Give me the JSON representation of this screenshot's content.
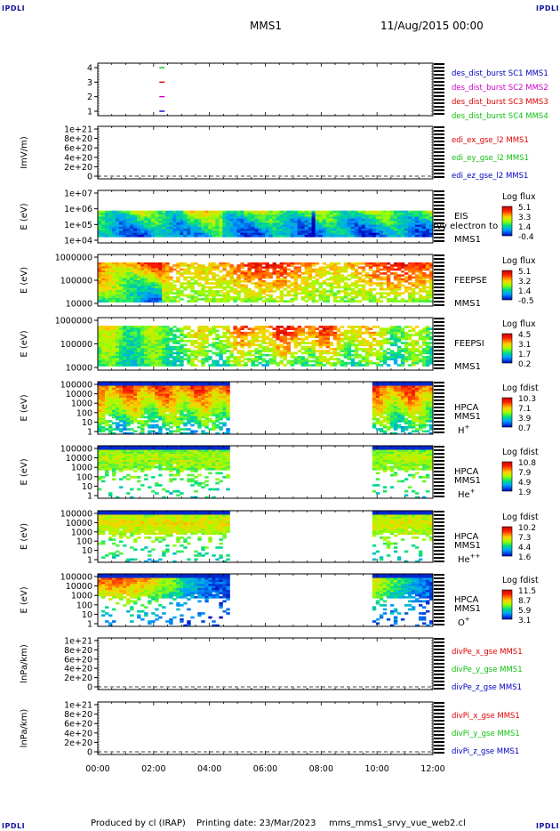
{
  "header": {
    "corner_tl": "IPDLI",
    "corner_tr": "IPDLI",
    "corner_bl": "IPDLI",
    "corner_br": "IPDLI",
    "spacecraft": "MMS1",
    "datetime": "11/Aug/2015 00:00"
  },
  "footer": {
    "produced_by": "Produced by cl (IRAP)",
    "printing_date": "Printing date: 23/Mar/2023",
    "script_name": "mms_mms1_srvy_vue_web2.cl"
  },
  "colors": {
    "red": "#e00000",
    "green": "#10c010",
    "blue": "#0000c0",
    "magenta": "#d000d0"
  },
  "chart_data": {
    "type": "heatmap",
    "x_axis": {
      "ticks": [
        "00:00",
        "02:00",
        "04:00",
        "06:00",
        "08:00",
        "10:00",
        "12:00"
      ],
      "range_hours": [
        0,
        12
      ]
    },
    "panels": [
      {
        "id": "burst",
        "kind": "burst",
        "ylabel": "",
        "yticks": [
          "4",
          "3",
          "2",
          "1"
        ],
        "legend": [
          {
            "text": "des_dist_burst SC1 MMS1",
            "color": "#0000c0"
          },
          {
            "text": "des_dist_burst SC2 MMS2",
            "color": "#d000d0"
          },
          {
            "text": "des_dist_burst SC3 MMS3",
            "color": "#e00000"
          },
          {
            "text": "des_dist_burst SC4 MMS4",
            "color": "#10c010"
          }
        ],
        "burst_marks": [
          {
            "sc": 4,
            "hour": 2.3,
            "color": "#10c010"
          },
          {
            "sc": 3,
            "hour": 2.3,
            "color": "#e00000"
          },
          {
            "sc": 2,
            "hour": 2.3,
            "color": "#d000d0"
          },
          {
            "sc": 1,
            "hour": 2.3,
            "color": "#0000c0"
          }
        ]
      },
      {
        "id": "edi",
        "kind": "line",
        "ylabel": "ImV/m)",
        "yticks": [
          "1e+21",
          "8e+20",
          "6e+20",
          "4e+20",
          "2e+20",
          "0"
        ],
        "legend": [
          {
            "text": "edi_ex_gse_l2 MMS1",
            "color": "#e00000"
          },
          {
            "text": "edi_ey_gse_l2 MMS1",
            "color": "#10c010"
          },
          {
            "text": "edi_ez_gse_l2 MMS1",
            "color": "#0000c0"
          }
        ]
      },
      {
        "id": "eis",
        "kind": "spectro",
        "ylabel": "E (eV)",
        "yticks": [
          "1e+07",
          "1e+06",
          "1e+05",
          "1e+04"
        ],
        "labels": [
          "EIS",
          "MMS1"
        ],
        "overlay": "rvy electron to",
        "cbar_title": "Log flux",
        "cbar_ticks": [
          "5.1",
          "3.3",
          "1.4",
          "-0.4"
        ],
        "time_segments": [
          [
            0,
            12
          ]
        ],
        "texture": "bands"
      },
      {
        "id": "feepse",
        "kind": "spectro",
        "ylabel": "E (eV)",
        "yticks": [
          "1000000",
          "100000",
          "10000"
        ],
        "labels": [
          "FEEPSE",
          "MMS1"
        ],
        "cbar_title": "Log flux",
        "cbar_ticks": [
          "5.1",
          "3.2",
          "1.4",
          "-0.5"
        ],
        "time_segments": [
          [
            0,
            12
          ]
        ],
        "texture": "feeps_e"
      },
      {
        "id": "feepsi",
        "kind": "spectro",
        "ylabel": "E (eV)",
        "yticks": [
          "1000000",
          "100000",
          "10000"
        ],
        "labels": [
          "FEEPSI",
          "MMS1"
        ],
        "cbar_title": "Log flux",
        "cbar_ticks": [
          "4.5",
          "3.1",
          "1.7",
          "0.2"
        ],
        "time_segments": [
          [
            0,
            12
          ]
        ],
        "texture": "feeps_i"
      },
      {
        "id": "hpca_h",
        "kind": "spectro",
        "ylabel": "E (eV)",
        "yticks": [
          "100000",
          "10000",
          "1000",
          "100",
          "10",
          "1"
        ],
        "labels": [
          "HPCA",
          "MMS1"
        ],
        "species": "H",
        "species_sup": "+",
        "cbar_title": "Log fdist",
        "cbar_ticks": [
          "10.3",
          "7.1",
          "3.9",
          "0.7"
        ],
        "time_segments": [
          [
            0,
            4.75
          ],
          [
            9.85,
            12
          ]
        ],
        "texture": "hpca_dense"
      },
      {
        "id": "hpca_he",
        "kind": "spectro",
        "ylabel": "E (eV)",
        "yticks": [
          "100000",
          "10000",
          "1000",
          "100",
          "10",
          "1"
        ],
        "labels": [
          "HPCA",
          "MMS1"
        ],
        "species": "He",
        "species_sup": "+",
        "cbar_title": "Log fdist",
        "cbar_ticks": [
          "10.8",
          "7.9",
          "4.9",
          "1.9"
        ],
        "time_segments": [
          [
            0,
            4.75
          ],
          [
            9.85,
            12
          ]
        ],
        "texture": "hpca_sparse"
      },
      {
        "id": "hpca_hepp",
        "kind": "spectro",
        "ylabel": "E (eV)",
        "yticks": [
          "100000",
          "10000",
          "1000",
          "100",
          "10",
          "1"
        ],
        "labels": [
          "HPCA",
          "MMS1"
        ],
        "species": "He",
        "species_sup": "++",
        "cbar_title": "Log fdist",
        "cbar_ticks": [
          "10.2",
          "7.3",
          "4.4",
          "1.6"
        ],
        "time_segments": [
          [
            0,
            4.75
          ],
          [
            9.85,
            12
          ]
        ],
        "texture": "hpca_sparse2"
      },
      {
        "id": "hpca_o",
        "kind": "spectro",
        "ylabel": "E (eV)",
        "yticks": [
          "100000",
          "10000",
          "1000",
          "100",
          "10",
          "1"
        ],
        "labels": [
          "HPCA",
          "MMS1"
        ],
        "species": "O",
        "species_sup": "+",
        "cbar_title": "Log fdist",
        "cbar_ticks": [
          "11.5",
          "8.7",
          "5.9",
          "3.1"
        ],
        "time_segments": [
          [
            0,
            4.75
          ],
          [
            9.85,
            12
          ]
        ],
        "texture": "hpca_o"
      },
      {
        "id": "divpe",
        "kind": "line",
        "ylabel": "lnPa/km)",
        "yticks": [
          "1e+21",
          "8e+20",
          "6e+20",
          "4e+20",
          "2e+20",
          "0"
        ],
        "legend": [
          {
            "text": "divPe_x_gse MMS1",
            "color": "#e00000"
          },
          {
            "text": "divPe_y_gse MMS1",
            "color": "#10c010"
          },
          {
            "text": "divPe_z_gse MMS1",
            "color": "#0000c0"
          }
        ]
      },
      {
        "id": "divpi",
        "kind": "line",
        "ylabel": "lnPa/km)",
        "yticks": [
          "1e+21",
          "8e+20",
          "6e+20",
          "4e+20",
          "2e+20",
          "0"
        ],
        "legend": [
          {
            "text": "divPi_x_gse MMS1",
            "color": "#e00000"
          },
          {
            "text": "divPi_y_gse MMS1",
            "color": "#10c010"
          },
          {
            "text": "divPi_z_gse MMS1",
            "color": "#0000c0"
          }
        ]
      }
    ]
  }
}
